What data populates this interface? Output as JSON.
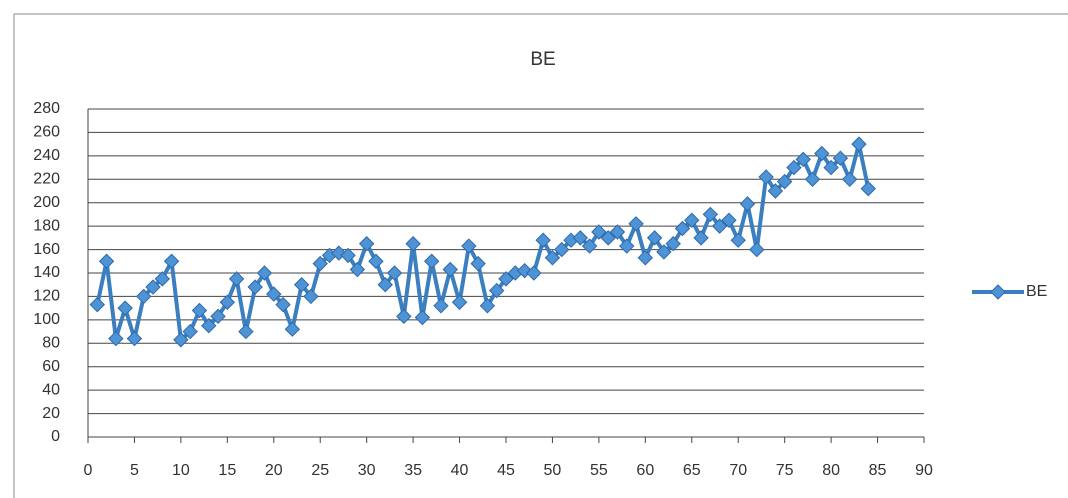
{
  "chart_data": {
    "type": "line",
    "title": "BE",
    "x": [
      1,
      2,
      3,
      4,
      5,
      6,
      7,
      8,
      9,
      10,
      11,
      12,
      13,
      14,
      15,
      16,
      17,
      18,
      19,
      20,
      21,
      22,
      23,
      24,
      25,
      26,
      27,
      28,
      29,
      30,
      31,
      32,
      33,
      34,
      35,
      36,
      37,
      38,
      39,
      40,
      41,
      42,
      43,
      44,
      45,
      46,
      47,
      48,
      49,
      50,
      51,
      52,
      53,
      54,
      55,
      56,
      57,
      58,
      59,
      60,
      61,
      62,
      63,
      64,
      65,
      66,
      67,
      68,
      69,
      70,
      71,
      72,
      73,
      74,
      75,
      76,
      77,
      78,
      79,
      80,
      81,
      82,
      83,
      84
    ],
    "series": [
      {
        "name": "BE",
        "color": "#3c7fc1",
        "values": [
          113,
          150,
          84,
          110,
          84,
          120,
          128,
          135,
          150,
          83,
          90,
          108,
          95,
          103,
          115,
          135,
          90,
          128,
          140,
          122,
          113,
          92,
          130,
          120,
          148,
          155,
          157,
          155,
          143,
          165,
          150,
          130,
          140,
          103,
          165,
          102,
          150,
          112,
          143,
          115,
          163,
          148,
          112,
          125,
          135,
          140,
          142,
          140,
          168,
          153,
          160,
          168,
          170,
          163,
          175,
          170,
          175,
          163,
          182,
          153,
          170,
          158,
          165,
          178,
          185,
          170,
          190,
          180,
          185,
          168,
          199,
          160,
          222,
          210,
          218,
          230,
          237,
          220,
          242,
          230,
          238,
          220,
          250,
          212
        ]
      }
    ],
    "xlim": [
      0,
      90
    ],
    "xticks": [
      0,
      5,
      10,
      15,
      20,
      25,
      30,
      35,
      40,
      45,
      50,
      55,
      60,
      65,
      70,
      75,
      80,
      85,
      90
    ],
    "ylim": [
      0,
      280
    ],
    "yticks": [
      0,
      20,
      40,
      60,
      80,
      100,
      120,
      140,
      160,
      180,
      200,
      220,
      240,
      260,
      280
    ],
    "grid": true,
    "legend": "right"
  }
}
